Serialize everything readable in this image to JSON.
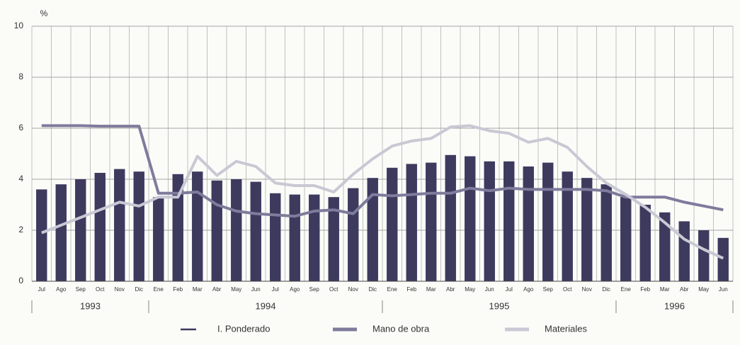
{
  "chart_data": {
    "type": "bar-line",
    "y_label": "%",
    "categories": [
      "Jul",
      "Ago",
      "Sep",
      "Oct",
      "Nov",
      "Dic",
      "Ene",
      "Feb",
      "Mar",
      "Abr",
      "May",
      "Jun",
      "Jul",
      "Ago",
      "Sep",
      "Oct",
      "Nov",
      "Dic",
      "Ene",
      "Feb",
      "Mar",
      "Abr",
      "May",
      "Jun",
      "Jul",
      "Ago",
      "Sep",
      "Oct",
      "Nov",
      "Dic",
      "Ene",
      "Feb",
      "Mar",
      "Abr",
      "May",
      "Jun"
    ],
    "groups": [
      {
        "label": "1993",
        "count": 6
      },
      {
        "label": "1994",
        "count": 12
      },
      {
        "label": "1995",
        "count": 12
      },
      {
        "label": "1996",
        "count": 6
      }
    ],
    "series": [
      {
        "name": "I. Ponderado",
        "kind": "bar",
        "color": "#3d3a5e",
        "values": [
          3.6,
          3.8,
          4.0,
          4.25,
          4.4,
          4.3,
          3.3,
          4.2,
          4.3,
          3.95,
          4.0,
          3.9,
          3.45,
          3.4,
          3.4,
          3.3,
          3.65,
          4.05,
          4.45,
          4.6,
          4.65,
          4.95,
          4.9,
          4.7,
          4.7,
          4.5,
          4.65,
          4.3,
          4.05,
          3.8,
          3.3,
          3.0,
          2.7,
          2.35,
          2.0,
          1.7
        ]
      },
      {
        "name": "Mano de obra",
        "kind": "line",
        "color": "#7f7b9c",
        "values": [
          6.1,
          6.1,
          6.1,
          6.08,
          6.08,
          6.08,
          3.45,
          3.45,
          3.5,
          3.0,
          2.75,
          2.65,
          2.6,
          2.55,
          2.75,
          2.8,
          2.65,
          3.4,
          3.35,
          3.4,
          3.45,
          3.45,
          3.65,
          3.55,
          3.65,
          3.6,
          3.6,
          3.6,
          3.6,
          3.55,
          3.3,
          3.3,
          3.3,
          3.1,
          2.95,
          2.8
        ]
      },
      {
        "name": "Materiales",
        "kind": "line",
        "color": "#c9c8d4",
        "values": [
          1.9,
          2.2,
          2.5,
          2.8,
          3.1,
          2.95,
          3.3,
          3.3,
          4.9,
          4.15,
          4.7,
          4.5,
          3.85,
          3.75,
          3.75,
          3.5,
          4.2,
          4.8,
          5.3,
          5.5,
          5.6,
          6.05,
          6.1,
          5.9,
          5.8,
          5.45,
          5.6,
          5.25,
          4.5,
          3.85,
          3.4,
          2.9,
          2.3,
          1.65,
          1.25,
          0.9
        ]
      }
    ],
    "ylim": [
      0,
      10
    ],
    "yticks": [
      0,
      2,
      4,
      6,
      8,
      10
    ],
    "grid": true
  }
}
